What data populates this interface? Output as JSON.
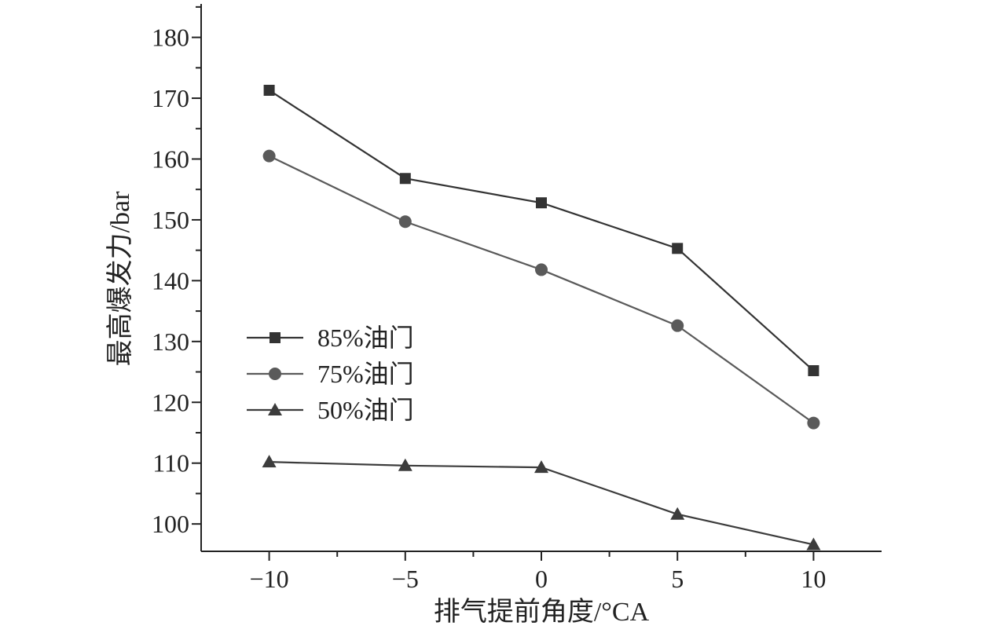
{
  "chart_data": {
    "type": "line",
    "title": "",
    "xlabel": "排气提前角度/°CA",
    "ylabel": "最高爆发力/bar",
    "x": [
      -10,
      -5,
      0,
      5,
      10
    ],
    "x_tick_labels": [
      "−10",
      "−5",
      "0",
      "5",
      "10"
    ],
    "y_ticks": [
      100,
      110,
      120,
      130,
      140,
      150,
      160,
      170,
      180
    ],
    "y_tick_labels": [
      "100",
      "110",
      "120",
      "130",
      "140",
      "150",
      "160",
      "170",
      "180"
    ],
    "xlim": [
      -12.5,
      12.5
    ],
    "ylim": [
      95.5,
      185.5
    ],
    "grid": false,
    "legend_position": "middle-left",
    "series": [
      {
        "name": "85%油门",
        "marker": "square",
        "color": "#333333",
        "values": [
          171.3,
          156.8,
          152.8,
          145.3,
          125.2
        ]
      },
      {
        "name": "75%油门",
        "marker": "circle",
        "color": "#5a5a5a",
        "values": [
          160.5,
          149.7,
          141.8,
          132.6,
          116.6
        ]
      },
      {
        "name": "50%油门",
        "marker": "triangle",
        "color": "#3c3c3c",
        "values": [
          110.2,
          109.6,
          109.3,
          101.6,
          96.6
        ]
      }
    ]
  }
}
